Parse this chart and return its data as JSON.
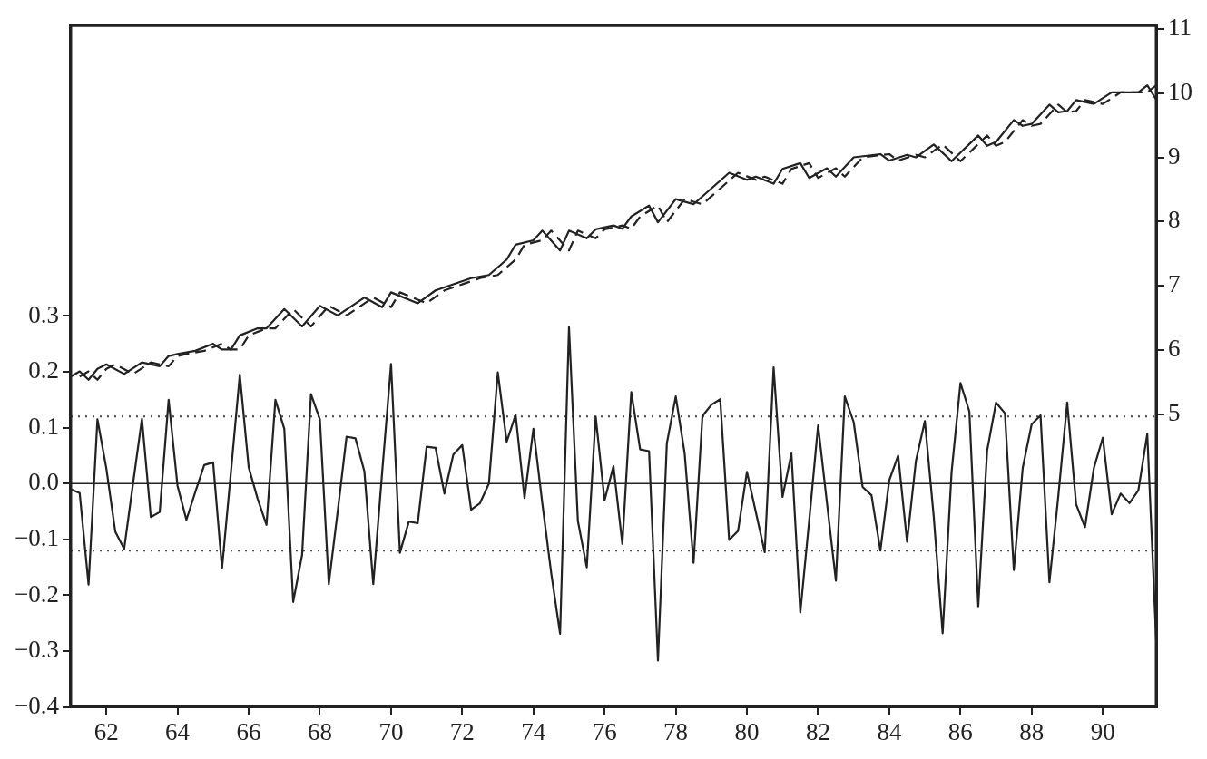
{
  "chart_data": {
    "type": "line",
    "xlim": [
      61,
      91.5
    ],
    "xticks": [
      62,
      64,
      66,
      68,
      70,
      72,
      74,
      76,
      78,
      80,
      82,
      84,
      86,
      88,
      90
    ],
    "ylim": [
      -0.4,
      0.82
    ],
    "yticks": [
      {
        "value": -0.4,
        "label": "−0.4"
      },
      {
        "value": -0.3,
        "label": "−0.3"
      },
      {
        "value": -0.2,
        "label": "−0.2"
      },
      {
        "value": -0.1,
        "label": "−0.1"
      },
      {
        "value": 0,
        "label": "0.0"
      },
      {
        "value": 0.1,
        "label": "0.1"
      },
      {
        "value": 0.2,
        "label": "0.2"
      },
      {
        "value": 0.3,
        "label": "0.3"
      }
    ],
    "y2lim": [
      0.45,
      11.05
    ],
    "y2ticks": [
      5,
      6,
      7,
      8,
      9,
      10,
      11
    ],
    "grid": false,
    "legend": false,
    "marker": "none",
    "series": [
      {
        "color": "#222222",
        "line_style": "solid",
        "x": [
          61,
          61.25,
          61.5,
          61.75,
          62,
          62.25,
          62.5,
          62.75,
          63,
          63.25,
          63.5,
          63.75,
          64,
          64.25,
          64.5,
          64.75,
          65,
          65.25,
          65.5,
          65.75,
          66,
          66.25,
          66.5,
          66.75,
          67,
          67.25,
          67.5,
          67.75,
          68,
          68.25,
          68.5,
          68.75,
          69,
          69.25,
          69.5,
          69.75,
          70,
          70.25,
          70.5,
          70.75,
          71,
          71.25,
          71.5,
          71.75,
          72,
          72.25,
          72.5,
          72.75,
          73,
          73.25,
          73.5,
          73.75,
          74,
          74.25,
          74.5,
          74.75,
          75,
          75.25,
          75.5,
          75.75,
          76,
          76.25,
          76.5,
          76.75,
          77,
          77.25,
          77.5,
          77.75,
          78,
          78.25,
          78.5,
          78.75,
          79,
          79.25,
          79.5,
          79.75,
          80,
          80.25,
          80.5,
          80.75,
          81,
          81.25,
          81.5,
          81.75,
          82,
          82.25,
          82.5,
          82.75,
          83,
          83.25,
          83.5,
          83.75,
          84,
          84.25,
          84.5,
          84.75,
          85,
          85.25,
          85.5,
          85.75,
          86,
          86.25,
          86.5,
          86.75,
          87,
          87.25,
          87.5,
          87.75,
          88,
          88.25,
          88.5,
          88.75,
          89,
          89.25,
          89.5,
          89.75,
          90,
          90.25,
          90.5,
          90.75,
          91,
          91.25,
          91.5
        ],
        "values": [
          -0.01,
          -0.017,
          -0.181,
          0.115,
          0.027,
          -0.086,
          -0.117,
          0.0,
          0.116,
          -0.06,
          -0.051,
          0.15,
          -0.004,
          -0.065,
          -0.015,
          0.033,
          0.038,
          -0.152,
          0.02,
          0.195,
          0.029,
          -0.027,
          -0.074,
          0.15,
          0.098,
          -0.212,
          -0.128,
          0.16,
          0.115,
          -0.18,
          -0.05,
          0.084,
          0.081,
          0.022,
          -0.18,
          0.02,
          0.214,
          -0.124,
          -0.068,
          -0.071,
          0.066,
          0.064,
          -0.018,
          0.052,
          0.069,
          -0.047,
          -0.035,
          0.0,
          0.199,
          0.075,
          0.123,
          -0.026,
          0.098,
          -0.035,
          -0.16,
          -0.269,
          0.28,
          -0.067,
          -0.15,
          0.12,
          -0.03,
          0.031,
          -0.108,
          0.164,
          0.061,
          0.058,
          -0.317,
          0.072,
          0.156,
          0.054,
          -0.142,
          0.121,
          0.141,
          0.151,
          -0.101,
          -0.085,
          0.021,
          -0.051,
          -0.123,
          0.208,
          -0.024,
          0.054,
          -0.231,
          -0.066,
          0.104,
          -0.035,
          -0.174,
          0.156,
          0.11,
          -0.006,
          -0.021,
          -0.12,
          0.006,
          0.05,
          -0.104,
          0.041,
          0.112,
          -0.06,
          -0.268,
          0.02,
          0.18,
          0.129,
          -0.22,
          0.059,
          0.145,
          0.126,
          -0.155,
          0.028,
          0.106,
          0.122,
          -0.177,
          -0.022,
          0.145,
          -0.037,
          -0.078,
          0.028,
          0.082,
          -0.055,
          -0.018,
          -0.035,
          -0.012,
          0.089,
          -0.28
        ]
      },
      {
        "color": "#222222",
        "line_style": "solid",
        "axis": "y2",
        "x": [
          61,
          61.25,
          61.5,
          61.75,
          62,
          62.5,
          63,
          63.5,
          63.75,
          64,
          64.5,
          65,
          65.25,
          65.5,
          65.75,
          66.25,
          66.5,
          67,
          67.5,
          68,
          68.5,
          69.25,
          69.75,
          70,
          70.75,
          71.25,
          72.25,
          72.75,
          73.25,
          73.5,
          74,
          74.25,
          74.75,
          75,
          75.5,
          75.75,
          76.25,
          76.5,
          76.75,
          77.25,
          77.5,
          78,
          78.5,
          79.5,
          80,
          80.25,
          80.75,
          81,
          81.5,
          81.75,
          82.25,
          82.5,
          83,
          83.75,
          84,
          84.5,
          84.75,
          85.25,
          85.75,
          86.5,
          86.75,
          87,
          87.5,
          87.75,
          88,
          88.5,
          88.75,
          89,
          89.25,
          89.75,
          90.25,
          91,
          91.25,
          91.5
        ],
        "values": [
          5.59,
          5.67,
          5.54,
          5.71,
          5.78,
          5.63,
          5.81,
          5.75,
          5.91,
          5.94,
          5.99,
          6.1,
          6.01,
          6.01,
          6.23,
          6.34,
          6.34,
          6.64,
          6.37,
          6.69,
          6.54,
          6.82,
          6.67,
          6.9,
          6.73,
          6.93,
          7.12,
          7.17,
          7.41,
          7.64,
          7.71,
          7.86,
          7.55,
          7.86,
          7.74,
          7.88,
          7.94,
          7.89,
          8.08,
          8.25,
          7.99,
          8.35,
          8.27,
          8.76,
          8.65,
          8.7,
          8.59,
          8.82,
          8.91,
          8.68,
          8.83,
          8.7,
          9.0,
          9.05,
          8.95,
          9.04,
          9.0,
          9.2,
          8.94,
          9.34,
          9.18,
          9.24,
          9.58,
          9.49,
          9.52,
          9.82,
          9.7,
          9.72,
          9.89,
          9.83,
          10.01,
          10.01,
          10.12,
          9.9
        ]
      },
      {
        "color": "#222222",
        "line_style": "dashed",
        "axis": "y2",
        "x": [
          61.25,
          61.5,
          61.75,
          62,
          62.25,
          62.75,
          63.25,
          63.75,
          64,
          64.25,
          64.75,
          65.25,
          65.5,
          65.75,
          66,
          66.5,
          66.75,
          67.25,
          67.75,
          68.25,
          68.75,
          69.5,
          70,
          70.25,
          71,
          71.5,
          72.5,
          73,
          73.5,
          73.75,
          74.25,
          74.5,
          75,
          75.25,
          75.75,
          76,
          76.5,
          76.75,
          77,
          77.5,
          77.75,
          78.25,
          78.75,
          79.75,
          80.25,
          80.5,
          81,
          81.25,
          81.75,
          82,
          82.5,
          82.75,
          83.25,
          84,
          84.25,
          84.75,
          85,
          85.5,
          86,
          86.75,
          87,
          87.25,
          87.75,
          88,
          88.25,
          88.75,
          89,
          89.25,
          89.5,
          90,
          90.5,
          91.25,
          91.5
        ],
        "values": [
          5.59,
          5.67,
          5.54,
          5.71,
          5.78,
          5.63,
          5.81,
          5.75,
          5.91,
          5.94,
          5.99,
          6.1,
          6.01,
          6.01,
          6.23,
          6.34,
          6.34,
          6.64,
          6.37,
          6.69,
          6.54,
          6.82,
          6.67,
          6.9,
          6.73,
          6.93,
          7.12,
          7.17,
          7.41,
          7.64,
          7.71,
          7.86,
          7.55,
          7.86,
          7.74,
          7.88,
          7.94,
          7.89,
          8.08,
          8.25,
          7.99,
          8.35,
          8.27,
          8.76,
          8.65,
          8.7,
          8.59,
          8.82,
          8.91,
          8.68,
          8.83,
          8.7,
          9.0,
          9.05,
          8.95,
          9.04,
          9.0,
          9.2,
          8.94,
          9.34,
          9.18,
          9.24,
          9.58,
          9.49,
          9.52,
          9.82,
          9.7,
          9.72,
          9.89,
          9.83,
          10.01,
          10.01,
          10.12
        ]
      }
    ],
    "ref_lines": [
      {
        "axis": "y",
        "value": 0,
        "color": "#222222",
        "line_style": "solid"
      },
      {
        "axis": "y",
        "value": 0.12,
        "color": "#444444",
        "line_style": "dotted"
      },
      {
        "axis": "y",
        "value": -0.12,
        "color": "#444444",
        "line_style": "dotted"
      }
    ]
  }
}
